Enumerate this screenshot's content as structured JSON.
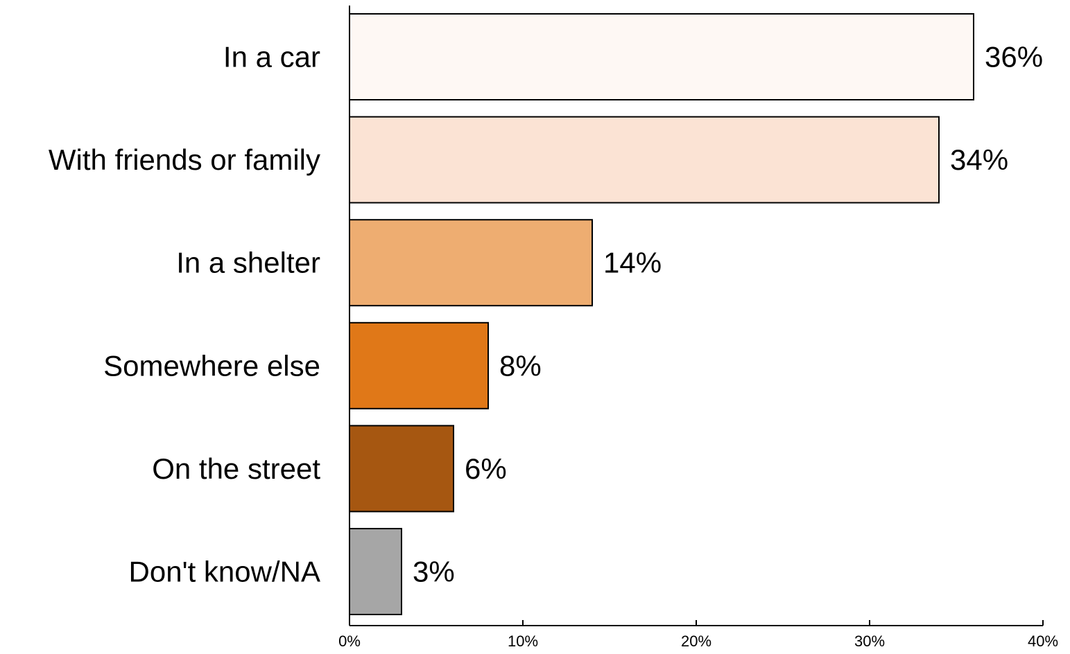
{
  "chart_data": {
    "type": "bar",
    "orientation": "horizontal",
    "categories": [
      "In a car",
      "With friends or family",
      "In a shelter",
      "Somewhere else",
      "On the street",
      "Don't know/NA"
    ],
    "values": [
      36,
      34,
      14,
      8,
      6,
      3
    ],
    "value_labels": [
      "36%",
      "34%",
      "14%",
      "8%",
      "6%",
      "3%"
    ],
    "bar_colors": [
      "#FEF8F4",
      "#FBE3D4",
      "#EEAD71",
      "#E07818",
      "#A65711",
      "#A6A6A6"
    ],
    "xlim": [
      0,
      40
    ],
    "x_ticks": [
      0,
      10,
      20,
      30,
      40
    ],
    "x_tick_labels": [
      "0%",
      "10%",
      "20%",
      "30%",
      "40%"
    ],
    "title": "",
    "xlabel": "",
    "ylabel": "",
    "grid": false,
    "legend": "none"
  }
}
